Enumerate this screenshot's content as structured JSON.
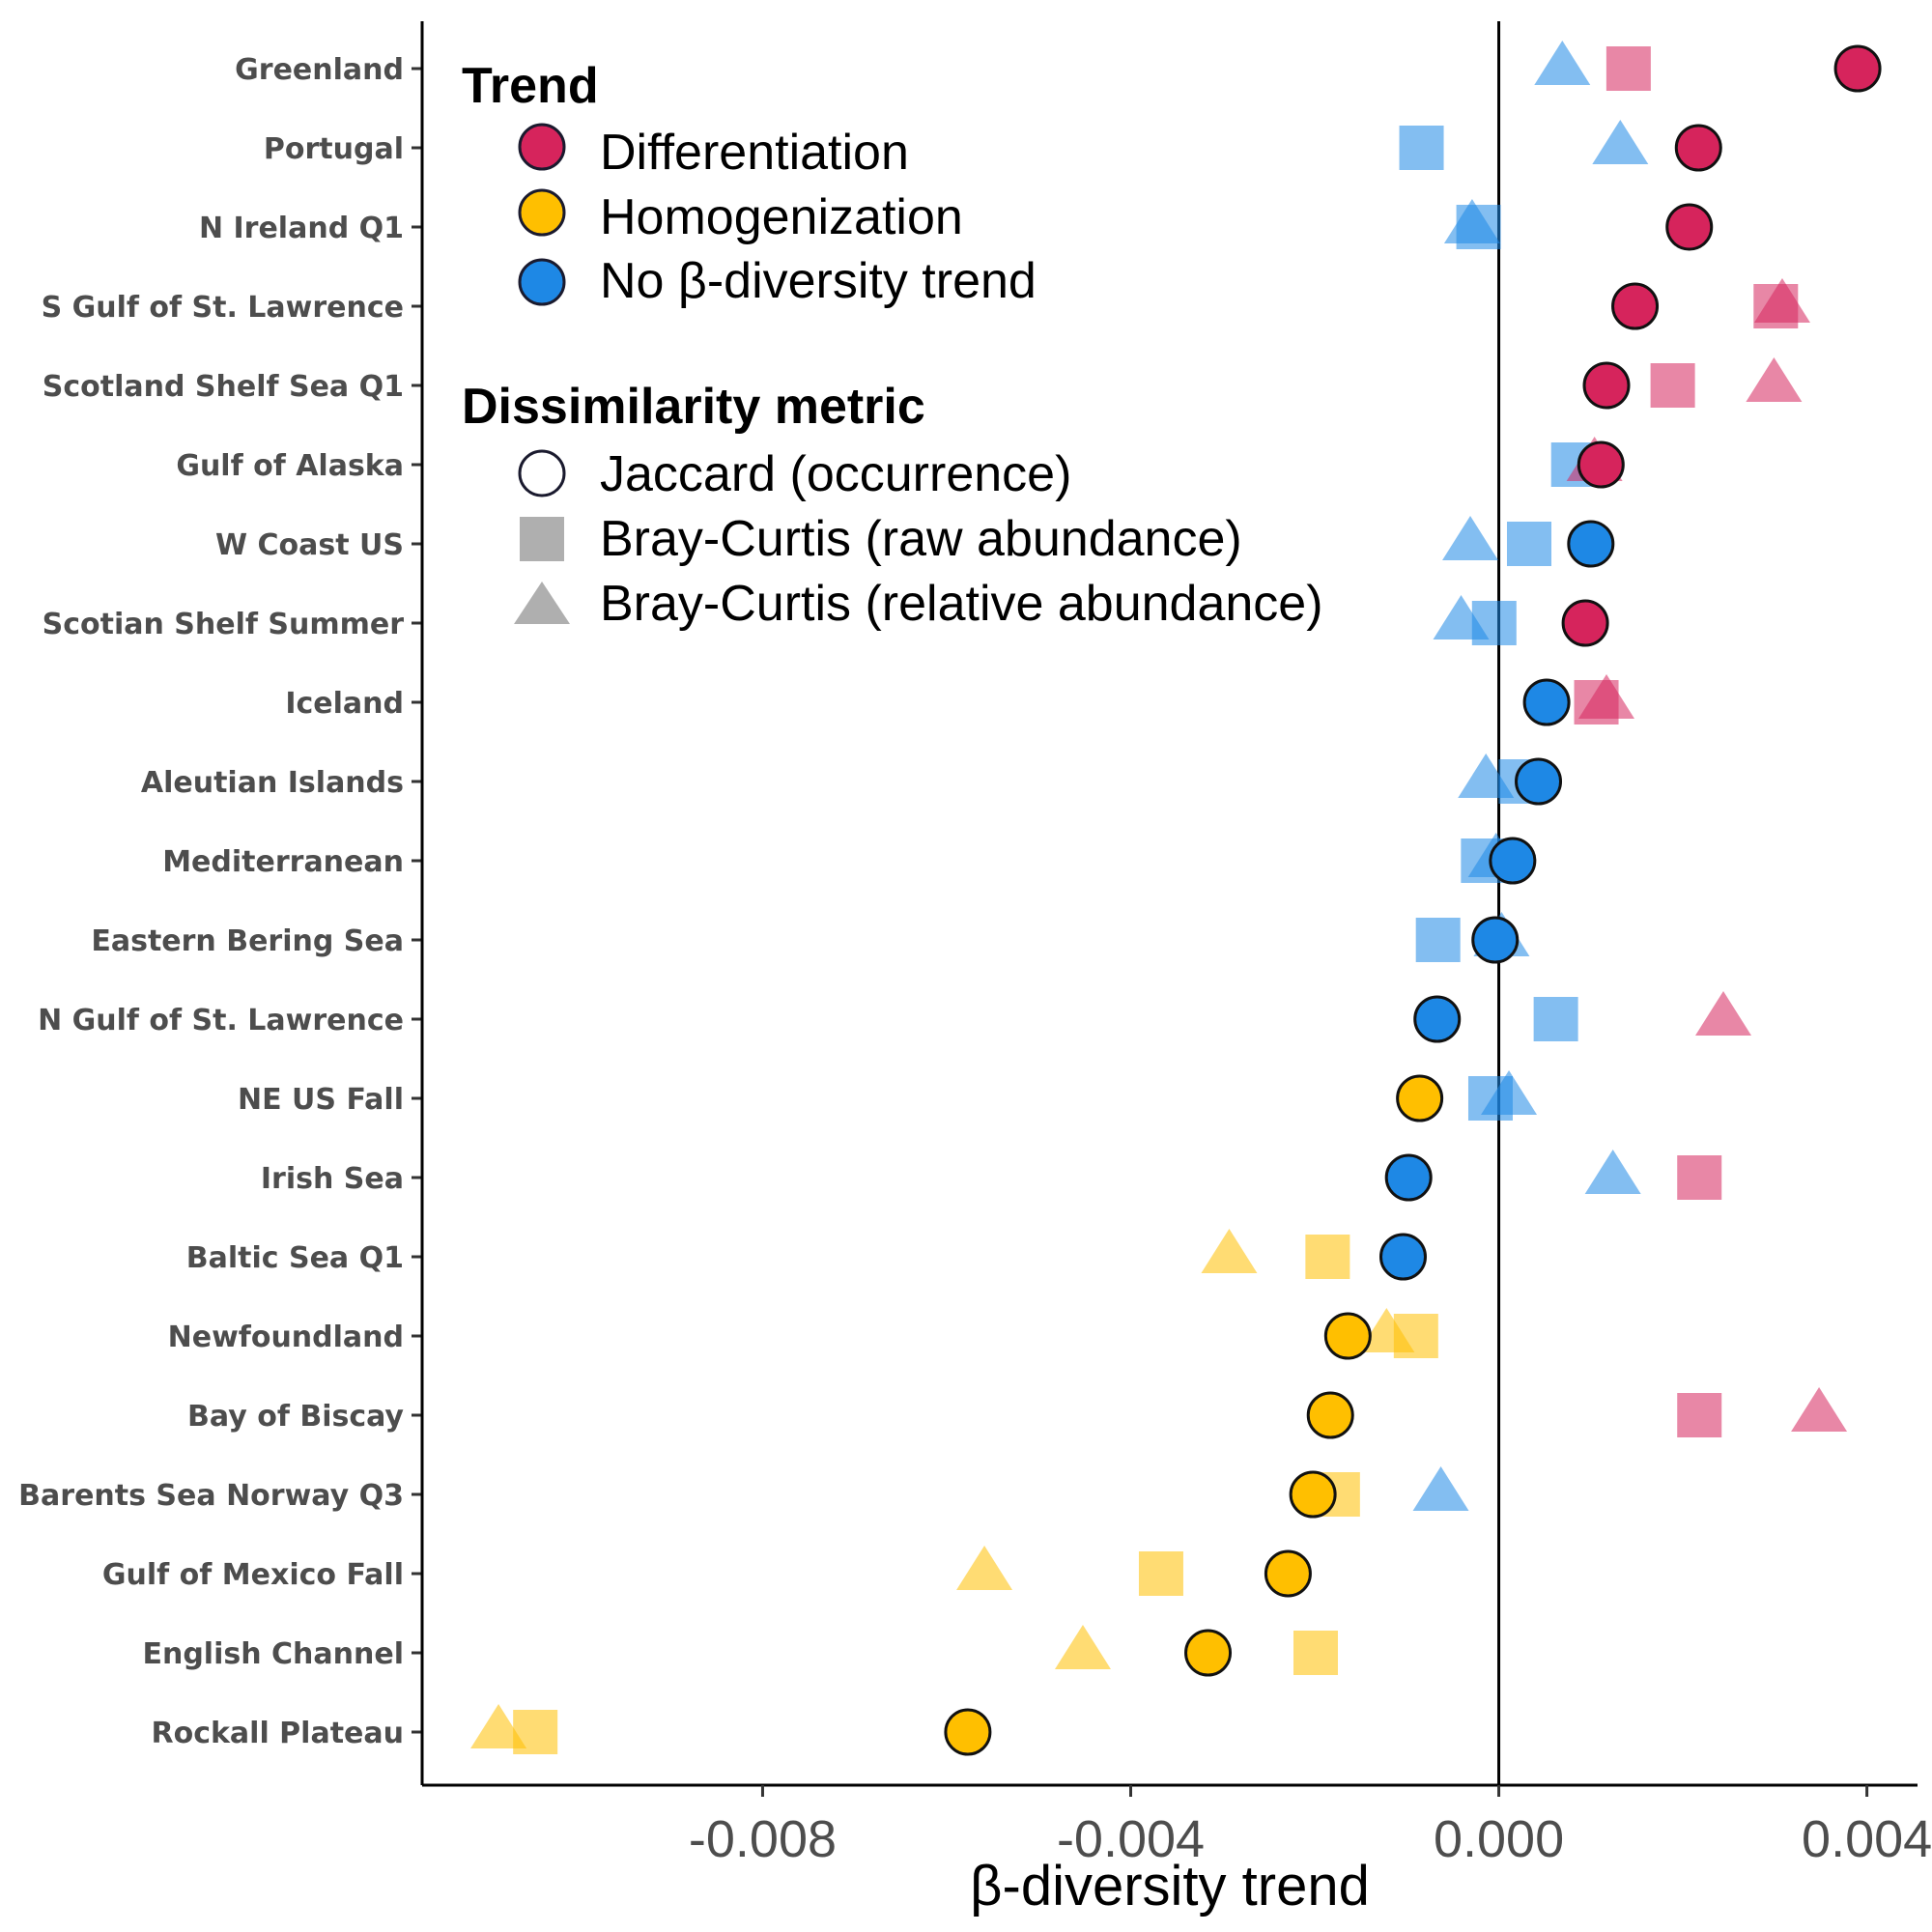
{
  "chart_data": {
    "type": "scatter",
    "xlabel": "β-diversity trend",
    "ylabel": "",
    "xlim": [
      -0.0117,
      0.00455
    ],
    "xticks": [
      -0.008,
      -0.004,
      0.0,
      0.004
    ],
    "xtick_labels": [
      "-0.008",
      "-0.004",
      "0.000",
      "0.004"
    ],
    "reference_line_x": 0.0,
    "grid": false,
    "colors": {
      "Differentiation": "#d6245c",
      "Homogenization": "#ffbf00",
      "No β-diversity trend": "#1e88e5"
    },
    "categories": [
      "Greenland",
      "Portugal",
      "N Ireland Q1",
      "S Gulf of St. Lawrence",
      "Scotland Shelf Sea Q1",
      "Gulf of Alaska",
      "W Coast US",
      "Scotian Shelf Summer",
      "Iceland",
      "Aleutian Islands",
      "Mediterranean",
      "Eastern Bering Sea",
      "N Gulf of St. Lawrence",
      "NE US Fall",
      "Irish Sea",
      "Baltic Sea Q1",
      "Newfoundland",
      "Bay of Biscay",
      "Barents Sea Norway Q3",
      "Gulf of Mexico Fall",
      "English Channel",
      "Rockall Plateau"
    ],
    "series": [
      {
        "name": "Jaccard (occurrence)",
        "shape": "circle",
        "values": [
          0.0039,
          0.00217,
          0.00207,
          0.00148,
          0.00117,
          0.00111,
          0.001,
          0.00094,
          0.00052,
          0.00043,
          0.00015,
          -4e-05,
          -0.00067,
          -0.00086,
          -0.00098,
          -0.00104,
          -0.00164,
          -0.00183,
          -0.00202,
          -0.00229,
          -0.00316,
          -0.00577
        ],
        "trend": [
          "Differentiation",
          "Differentiation",
          "Differentiation",
          "Differentiation",
          "Differentiation",
          "Differentiation",
          "No β-diversity trend",
          "Differentiation",
          "No β-diversity trend",
          "No β-diversity trend",
          "No β-diversity trend",
          "No β-diversity trend",
          "No β-diversity trend",
          "Homogenization",
          "No β-diversity trend",
          "No β-diversity trend",
          "Homogenization",
          "Homogenization",
          "Homogenization",
          "Homogenization",
          "Homogenization",
          "Homogenization"
        ]
      },
      {
        "name": "Bray-Curtis (raw abundance)",
        "shape": "square",
        "values": [
          0.00141,
          -0.00084,
          -0.00022,
          0.00301,
          0.00189,
          0.00081,
          0.00033,
          -5e-05,
          0.00106,
          0.00024,
          -0.00017,
          -0.00066,
          0.00062,
          -9e-05,
          0.00218,
          -0.00186,
          -0.0009,
          0.00218,
          -0.00175,
          -0.00367,
          -0.00199,
          -0.01047
        ],
        "trend": [
          "Differentiation",
          "No β-diversity trend",
          "No β-diversity trend",
          "Differentiation",
          "Differentiation",
          "No β-diversity trend",
          "No β-diversity trend",
          "No β-diversity trend",
          "Differentiation",
          "No β-diversity trend",
          "No β-diversity trend",
          "No β-diversity trend",
          "No β-diversity trend",
          "No β-diversity trend",
          "Differentiation",
          "Homogenization",
          "Homogenization",
          "Differentiation",
          "Homogenization",
          "Homogenization",
          "Homogenization",
          "Homogenization"
        ]
      },
      {
        "name": "Bray-Curtis (relative abundance)",
        "shape": "triangle",
        "values": [
          0.00069,
          0.00132,
          -0.00029,
          0.00308,
          0.00299,
          0.00104,
          -0.00031,
          -0.00041,
          0.00117,
          -0.00014,
          -3e-05,
          3e-05,
          0.00244,
          0.00011,
          0.00124,
          -0.00293,
          -0.00122,
          0.00348,
          -0.00063,
          -0.00559,
          -0.00452,
          -0.01087
        ],
        "trend": [
          "No β-diversity trend",
          "No β-diversity trend",
          "No β-diversity trend",
          "Differentiation",
          "Differentiation",
          "Differentiation",
          "No β-diversity trend",
          "No β-diversity trend",
          "Differentiation",
          "No β-diversity trend",
          "No β-diversity trend",
          "No β-diversity trend",
          "Differentiation",
          "No β-diversity trend",
          "No β-diversity trend",
          "Homogenization",
          "Homogenization",
          "Differentiation",
          "No β-diversity trend",
          "Homogenization",
          "Homogenization",
          "Homogenization"
        ]
      }
    ],
    "legend": {
      "placement": "top-left",
      "trend_title": "Trend",
      "trend_items": [
        "Differentiation",
        "Homogenization",
        "No β-diversity trend"
      ],
      "metric_title": "Dissimilarity metric",
      "metric_items": [
        "Jaccard (occurrence)",
        "Bray-Curtis (raw abundance)",
        "Bray-Curtis (relative abundance)"
      ]
    }
  }
}
